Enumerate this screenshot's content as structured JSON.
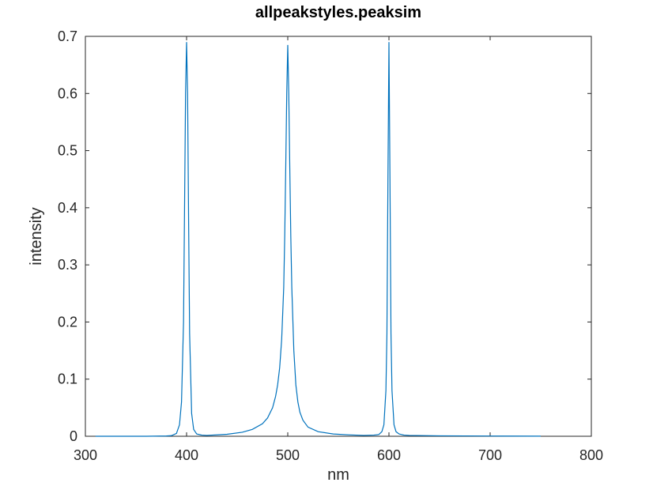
{
  "chart_data": {
    "type": "line",
    "title": "allpeakstyles.peaksim",
    "xlabel": "nm",
    "ylabel": "intensity",
    "xlim": [
      300,
      800
    ],
    "ylim": [
      0,
      0.7
    ],
    "xticks": [
      "300",
      "400",
      "500",
      "600",
      "700",
      "800"
    ],
    "yticks": [
      "0",
      "0.1",
      "0.2",
      "0.3",
      "0.4",
      "0.5",
      "0.6",
      "0.7"
    ],
    "grid": false,
    "line_color": "#0072BD",
    "series": [
      {
        "x": [
          310,
          360,
          380,
          385,
          390,
          393,
          395,
          397,
          398,
          399,
          400,
          401,
          402,
          403,
          405,
          407,
          410,
          415,
          420,
          440,
          455,
          465,
          475,
          480,
          485,
          488,
          490,
          492,
          494,
          496,
          497,
          498,
          499,
          500,
          501,
          502,
          503,
          504,
          506,
          508,
          510,
          512,
          515,
          520,
          530,
          545,
          560,
          575,
          585,
          590,
          593,
          595,
          597,
          598,
          599,
          600,
          601,
          602,
          603,
          605,
          607,
          610,
          615,
          620,
          650,
          700,
          750
        ],
        "y": [
          0,
          0,
          0.0005,
          0.001,
          0.005,
          0.02,
          0.06,
          0.2,
          0.4,
          0.6,
          0.69,
          0.6,
          0.38,
          0.18,
          0.04,
          0.012,
          0.004,
          0.002,
          0.0015,
          0.0035,
          0.007,
          0.012,
          0.022,
          0.032,
          0.05,
          0.07,
          0.09,
          0.12,
          0.17,
          0.26,
          0.35,
          0.47,
          0.6,
          0.685,
          0.6,
          0.47,
          0.35,
          0.26,
          0.15,
          0.09,
          0.06,
          0.042,
          0.028,
          0.016,
          0.008,
          0.004,
          0.0025,
          0.0015,
          0.002,
          0.003,
          0.008,
          0.02,
          0.08,
          0.18,
          0.45,
          0.69,
          0.45,
          0.18,
          0.08,
          0.02,
          0.008,
          0.004,
          0.002,
          0.0015,
          0.0008,
          0.0004,
          0.0002
        ]
      }
    ]
  }
}
